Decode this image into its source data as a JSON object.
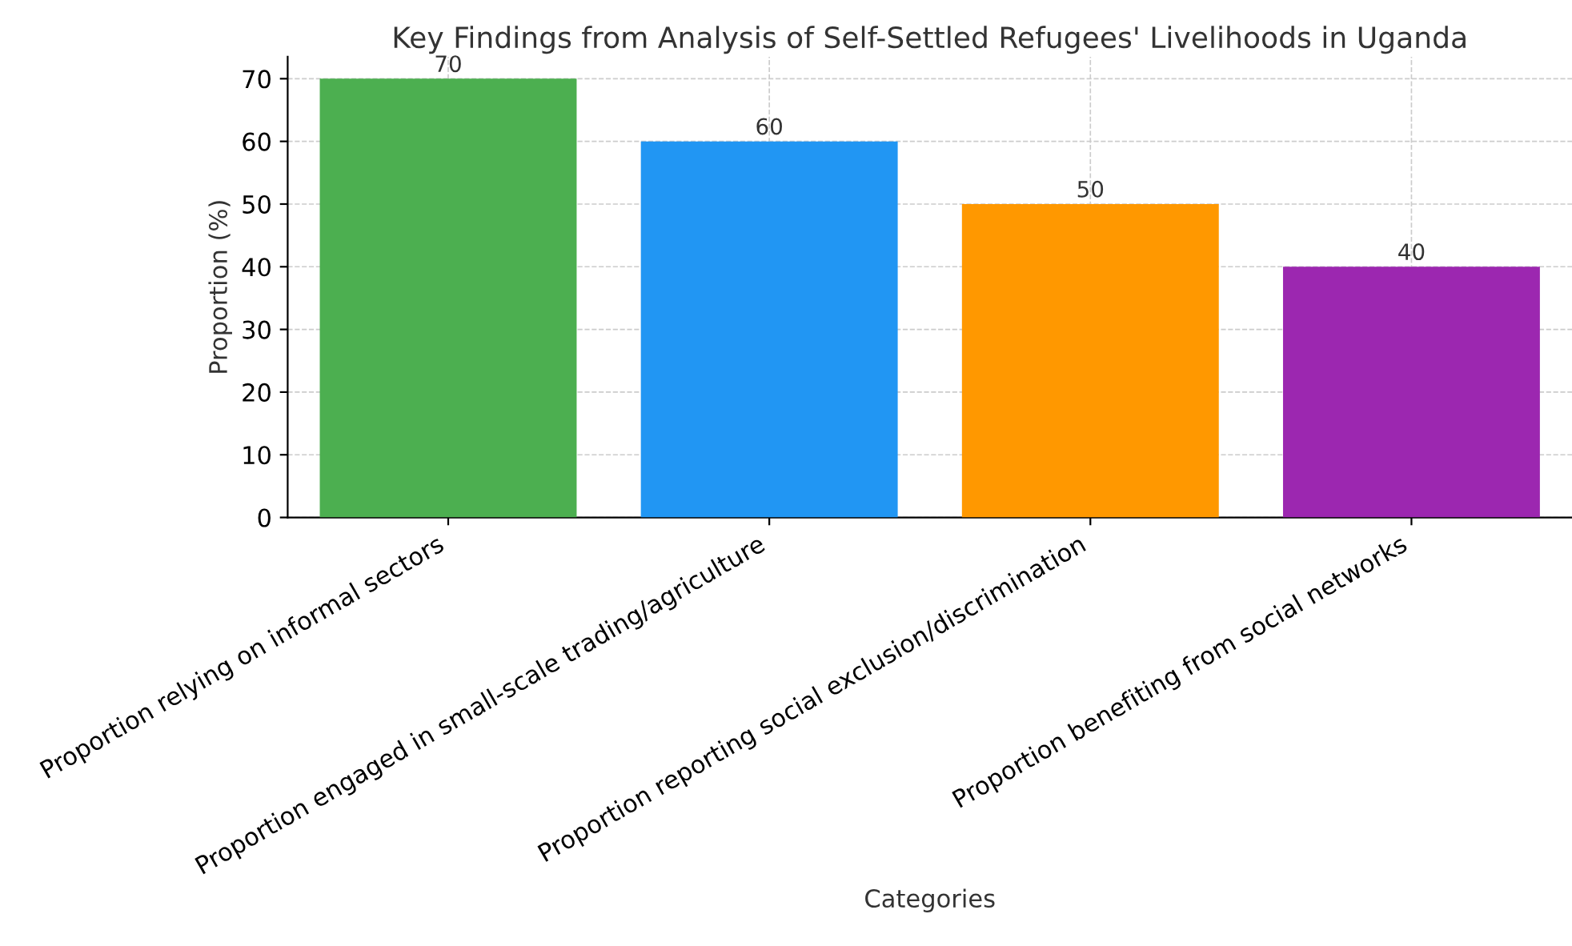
{
  "chart_data": {
    "type": "bar",
    "title": "Key Findings from Analysis of Self-Settled Refugees' Livelihoods in Uganda",
    "xlabel": "Categories",
    "ylabel": "Proportion (%)",
    "categories": [
      "Proportion relying on informal sectors",
      "Proportion engaged in small-scale trading/agriculture",
      "Proportion reporting social exclusion/discrimination",
      "Proportion benefiting from social networks"
    ],
    "values": [
      70,
      60,
      50,
      40
    ],
    "colors": [
      "#4caf50",
      "#2196f3",
      "#ff9800",
      "#9c27b0"
    ],
    "ylim": [
      0,
      73.5
    ],
    "yticks": [
      0,
      10,
      20,
      30,
      40,
      50,
      60,
      70
    ],
    "grid": true,
    "data_labels": true
  }
}
